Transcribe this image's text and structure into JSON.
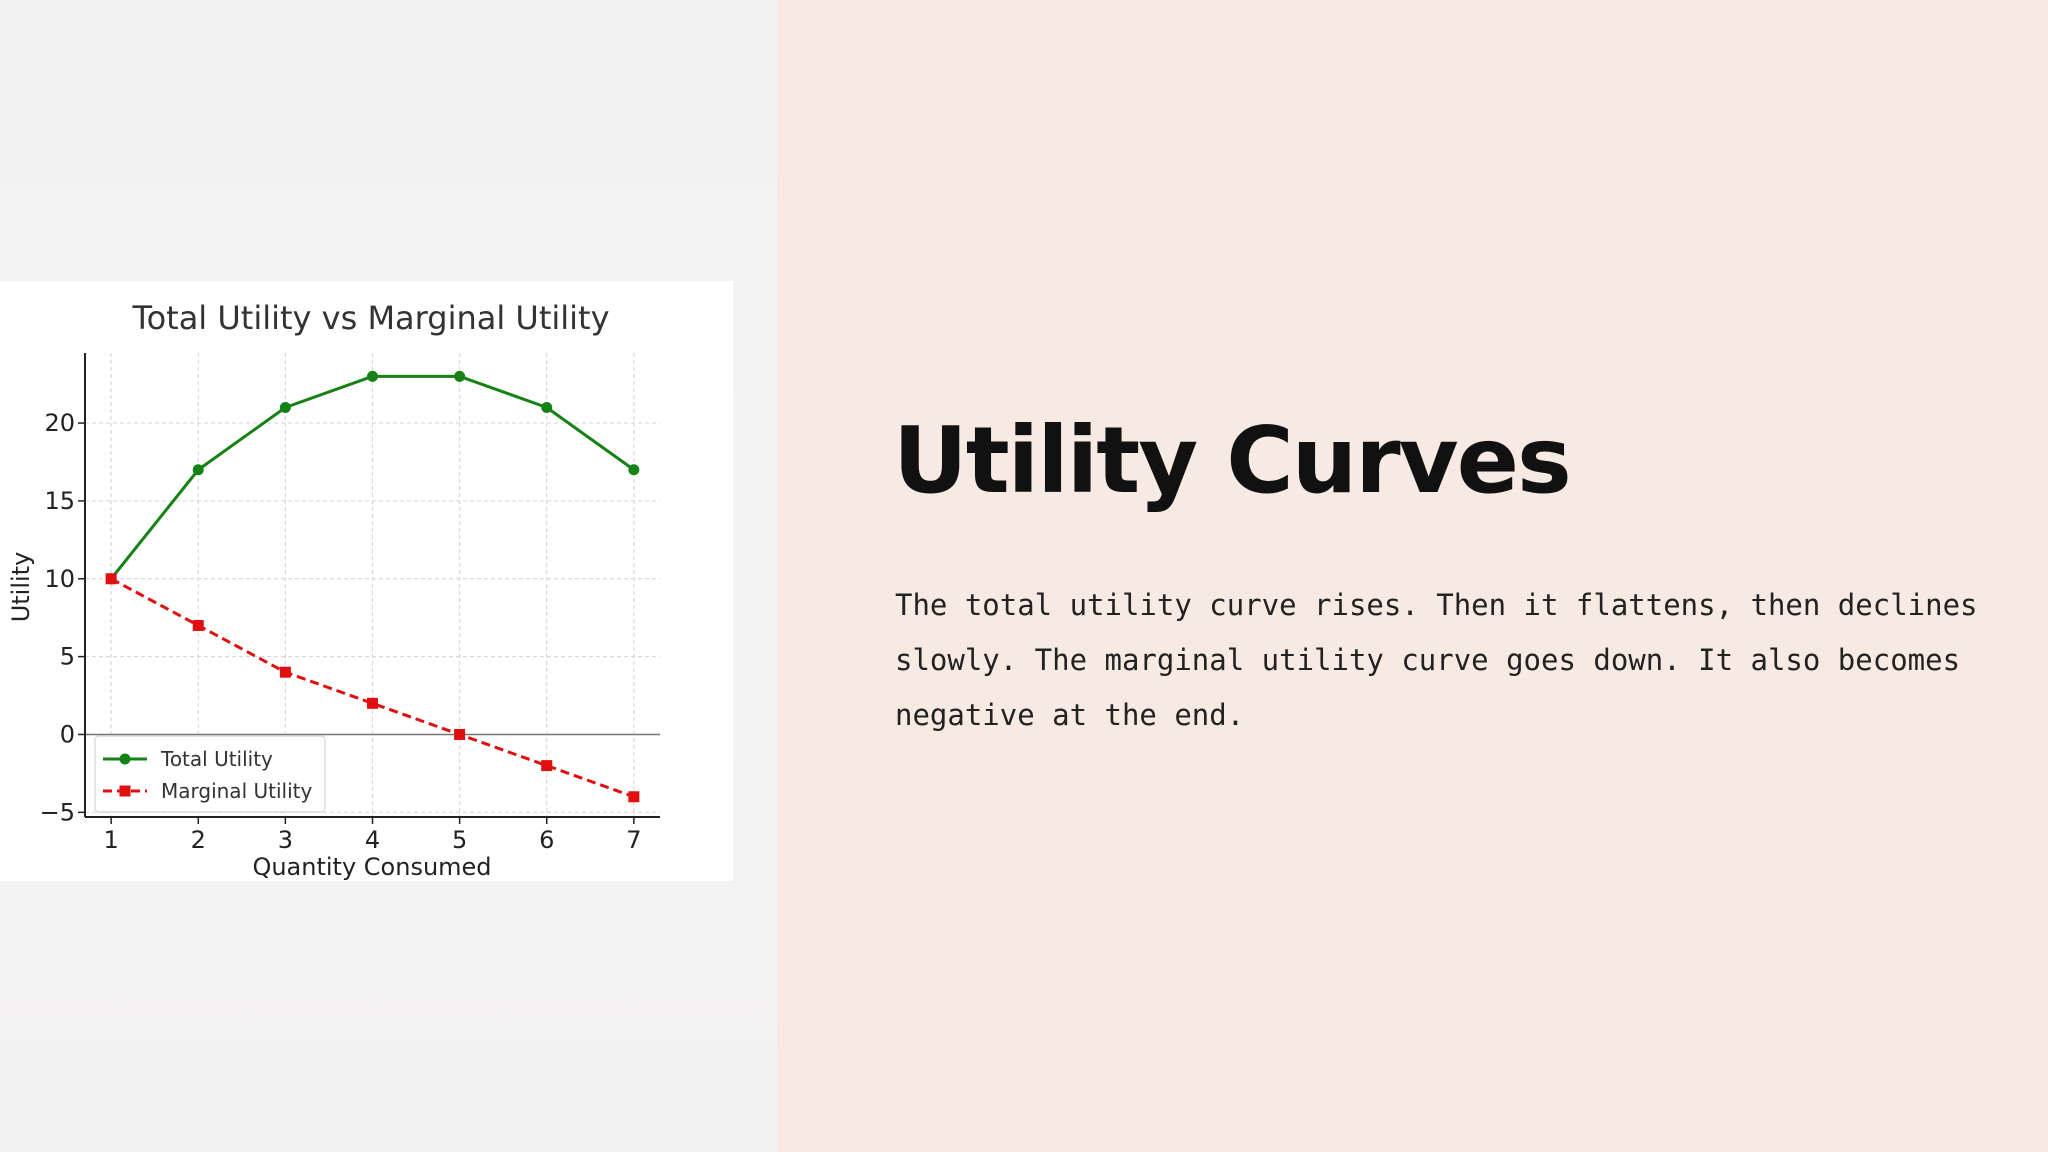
{
  "slide": {
    "title": "Utility Curves",
    "body": "The total utility curve rises. Then it flattens, then declines slowly. The marginal utility curve goes down. It also becomes negative at the end."
  },
  "colors": {
    "right_background": "#f6eae3",
    "total_utility": "#148214",
    "marginal_utility": "#e01010"
  },
  "chart_data": {
    "type": "line",
    "title": "Total Utility vs Marginal Utility",
    "xlabel": "Quantity Consumed",
    "ylabel": "Utility",
    "x": [
      1,
      2,
      3,
      4,
      5,
      6,
      7
    ],
    "xlim": [
      0.7,
      7.3
    ],
    "ylim": [
      -5.3,
      24.5
    ],
    "xticks": [
      1,
      2,
      3,
      4,
      5,
      6,
      7
    ],
    "yticks": [
      -5,
      0,
      5,
      10,
      15,
      20
    ],
    "ytick_labels": [
      "−5",
      "0",
      "5",
      "10",
      "15",
      "20"
    ],
    "grid": true,
    "zero_line": true,
    "legend_position": "lower-left",
    "series": [
      {
        "name": "Total Utility",
        "values": [
          10,
          17,
          21,
          23,
          23,
          21,
          17
        ],
        "color": "#148214",
        "marker": "circle",
        "line_style": "solid"
      },
      {
        "name": "Marginal Utility",
        "values": [
          10,
          7,
          4,
          2,
          0,
          -2,
          -4
        ],
        "color": "#e01010",
        "marker": "square",
        "line_style": "dashed"
      }
    ]
  }
}
